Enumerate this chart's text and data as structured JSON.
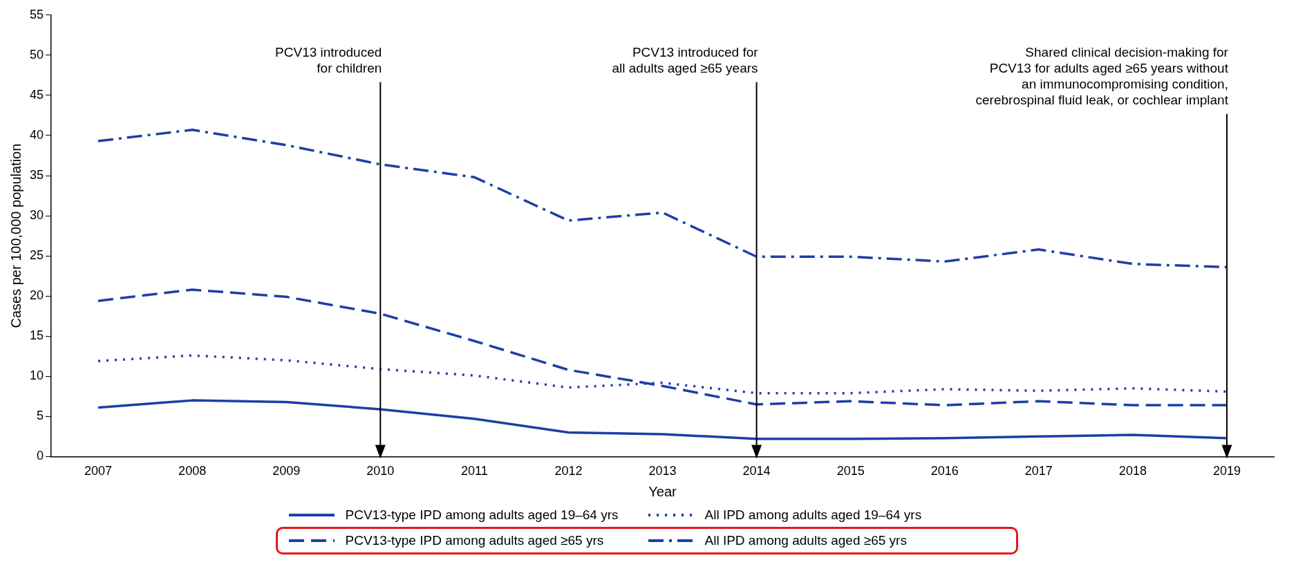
{
  "chart_data": {
    "type": "line",
    "xlabel": "Year",
    "ylabel": "Cases per 100,000 population",
    "categories": [
      "2007",
      "2008",
      "2009",
      "2010",
      "2011",
      "2012",
      "2013",
      "2014",
      "2015",
      "2016",
      "2017",
      "2018",
      "2019"
    ],
    "ylim": [
      0,
      55
    ],
    "yticks": [
      0,
      5,
      10,
      15,
      20,
      25,
      30,
      35,
      40,
      45,
      50,
      55
    ],
    "grid": false,
    "legend": "bottom",
    "marker": "none",
    "series": [
      {
        "name": "PCV13-type IPD among adults aged 19–64 yrs",
        "color": "#1c3fa8",
        "line_style": "solid",
        "values": [
          6.1,
          7.0,
          6.8,
          5.9,
          4.7,
          3.0,
          2.8,
          2.2,
          2.2,
          2.3,
          2.5,
          2.7,
          2.3
        ]
      },
      {
        "name": "All IPD among adults aged 19–64 yrs",
        "color": "#1c3fa8",
        "line_style": "dotted",
        "values": [
          11.9,
          12.6,
          12.0,
          10.9,
          10.1,
          8.6,
          9.2,
          7.9,
          7.9,
          8.4,
          8.2,
          8.5,
          8.1
        ]
      },
      {
        "name": "PCV13-type IPD among adults aged ≥65 yrs",
        "color": "#1c3fa8",
        "line_style": "dashed",
        "values": [
          19.4,
          20.8,
          19.9,
          17.8,
          14.4,
          10.8,
          8.8,
          6.5,
          6.9,
          6.4,
          6.9,
          6.4,
          6.4
        ]
      },
      {
        "name": "All IPD among adults aged ≥65 yrs",
        "color": "#1c3fa8",
        "line_style": "dashdot",
        "values": [
          39.3,
          40.7,
          38.8,
          36.4,
          34.8,
          29.4,
          30.4,
          24.9,
          24.9,
          24.3,
          25.8,
          24.0,
          23.6
        ]
      }
    ],
    "ref_lines": [
      {
        "axis": "x",
        "value": "2010",
        "label": "PCV13 introduced\nfor children",
        "color": "#000000"
      },
      {
        "axis": "x",
        "value": "2014",
        "label": "PCV13 introduced for\nall adults aged ≥65 years",
        "color": "#000000"
      },
      {
        "axis": "x",
        "value": "2019",
        "label": "Shared clinical decision-making for\nPCV13 for adults aged ≥65 years without\nan immunocompromising condition,\ncerebrospinal fluid leak, or cochlear implant",
        "color": "#000000"
      }
    ]
  }
}
